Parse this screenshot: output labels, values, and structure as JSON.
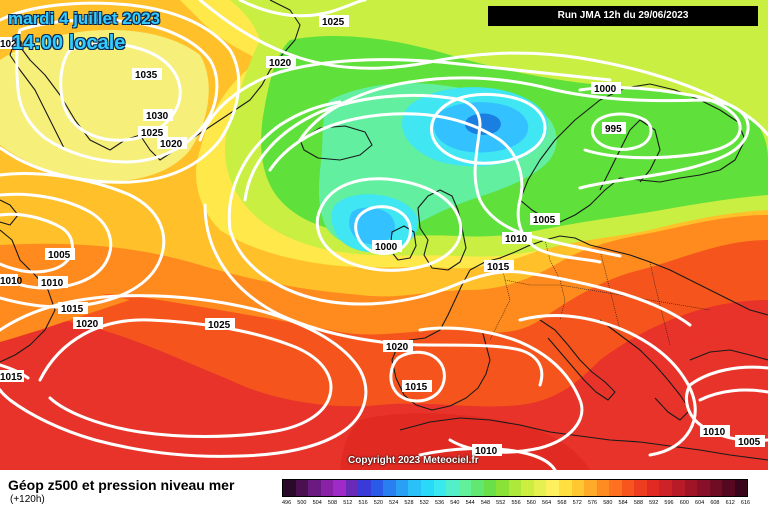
{
  "header": {
    "date_line": "mardi 4 juillet 2023",
    "time_line": "14:00 locale",
    "run_info": "Run JMA 12h du 29/06/2023"
  },
  "footer": {
    "title": "Géop z500 et pression niveau mer",
    "forecast_offset": "(+120h)",
    "copyright": "Copyright 2023 Meteociel.fr"
  },
  "colors": {
    "red": "#e8332a",
    "orange_red": "#f5551c",
    "orange": "#ff8a1e",
    "yellow_orange": "#ffc02a",
    "yellow": "#ffe84a",
    "light_yellow": "#f6ef7a",
    "yellow_green": "#c8ef42",
    "green": "#5fe03a",
    "mint": "#62f0a0",
    "cyan": "#40e6f2",
    "sky": "#33c2ff",
    "blue": "#1a7fe0",
    "isobar": "#ffffff",
    "coast": "#1a1a1a"
  },
  "scale": {
    "colors": [
      "#2a0a2a",
      "#4a1050",
      "#6a1a80",
      "#8a22a8",
      "#a02ac8",
      "#6a2ab8",
      "#3a3ad8",
      "#2a5ae8",
      "#2a7ff0",
      "#2aa0f5",
      "#2ac0f8",
      "#2ad8f8",
      "#3ae8f0",
      "#52f0c8",
      "#62f09a",
      "#62e870",
      "#6ae048",
      "#8ae238",
      "#aee83a",
      "#ccee40",
      "#e6f050",
      "#fff060",
      "#ffe040",
      "#ffc830",
      "#ffaa28",
      "#ff8c22",
      "#ff7020",
      "#f8551e",
      "#ee3c1e",
      "#e02a22",
      "#cc2228",
      "#b81a28",
      "#a01428",
      "#881028",
      "#700c24",
      "#560820",
      "#3a041a"
    ],
    "labels": [
      "496",
      "500",
      "504",
      "508",
      "512",
      "516",
      "520",
      "524",
      "528",
      "532",
      "536",
      "540",
      "544",
      "548",
      "552",
      "556",
      "560",
      "564",
      "568",
      "572",
      "576",
      "580",
      "584",
      "588",
      "592",
      "596",
      "600",
      "604",
      "608",
      "612",
      "616"
    ]
  },
  "isobar_labels": [
    {
      "name": "iso-label-1025-top",
      "text": "1025"
    },
    {
      "name": "iso-label-1020-north",
      "text": "1020"
    },
    {
      "name": "iso-label-1035",
      "text": "1035"
    },
    {
      "name": "iso-label-1030",
      "text": "1030"
    },
    {
      "name": "iso-label-1025-greenland",
      "text": "1025"
    },
    {
      "name": "iso-label-1020-greenland",
      "text": "1020"
    },
    {
      "name": "iso-label-1020-edge",
      "text": "1020"
    },
    {
      "name": "iso-label-1000-scandinavia",
      "text": "1000"
    },
    {
      "name": "iso-label-995",
      "text": "995"
    },
    {
      "name": "iso-label-1005-west",
      "text": "1005"
    },
    {
      "name": "iso-label-1010-west",
      "text": "1010"
    },
    {
      "name": "iso-label-1010-edge",
      "text": "1010"
    },
    {
      "name": "iso-label-1015-west",
      "text": "1015"
    },
    {
      "name": "iso-label-1020-west",
      "text": "1020"
    },
    {
      "name": "iso-label-1025-atlantic",
      "text": "1025"
    },
    {
      "name": "iso-label-1000-ireland",
      "text": "1000"
    },
    {
      "name": "iso-label-1005-northsea",
      "text": "1005"
    },
    {
      "name": "iso-label-1010-denmark",
      "text": "1010"
    },
    {
      "name": "iso-label-1015-germany",
      "text": "1015"
    },
    {
      "name": "iso-label-1020-biscay",
      "text": "1020"
    },
    {
      "name": "iso-label-1015-iberia",
      "text": "1015"
    },
    {
      "name": "iso-label-1015-edge",
      "text": "1015"
    },
    {
      "name": "iso-label-1010-sahara",
      "text": "1010"
    },
    {
      "name": "iso-label-1010-east",
      "text": "1010"
    },
    {
      "name": "iso-label-1005-east",
      "text": "1005"
    }
  ]
}
